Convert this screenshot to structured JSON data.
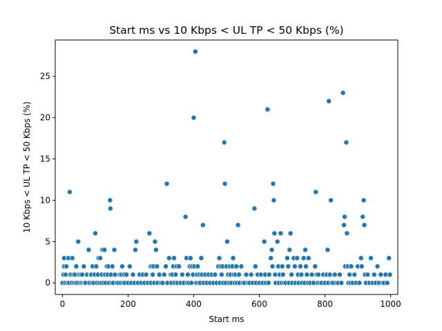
{
  "chart_data": {
    "type": "scatter",
    "title": "Start ms vs 10 Kbps < UL TP < 50 Kbps (%)",
    "xlabel": "Start ms",
    "ylabel": "10 Kbps < UL TP < 50 Kbps (%)",
    "xlim": [
      -22,
      1022
    ],
    "ylim": [
      -1.4,
      29.4
    ],
    "xticks": [
      0,
      200,
      400,
      600,
      800,
      1000
    ],
    "yticks": [
      0,
      5,
      10,
      15,
      20,
      25
    ],
    "color": "#1f77b4",
    "grid": false,
    "points": [
      [
        0,
        0
      ],
      [
        3,
        1
      ],
      [
        5,
        2
      ],
      [
        5,
        3
      ],
      [
        8,
        0
      ],
      [
        10,
        1
      ],
      [
        12,
        2
      ],
      [
        15,
        0
      ],
      [
        18,
        3
      ],
      [
        20,
        0
      ],
      [
        22,
        11
      ],
      [
        25,
        1
      ],
      [
        28,
        0
      ],
      [
        30,
        3
      ],
      [
        33,
        1
      ],
      [
        35,
        0
      ],
      [
        38,
        1
      ],
      [
        40,
        0
      ],
      [
        42,
        2
      ],
      [
        45,
        0
      ],
      [
        48,
        5
      ],
      [
        50,
        1
      ],
      [
        53,
        0
      ],
      [
        55,
        1
      ],
      [
        58,
        0
      ],
      [
        60,
        1
      ],
      [
        63,
        0
      ],
      [
        65,
        2
      ],
      [
        68,
        0
      ],
      [
        70,
        0
      ],
      [
        75,
        1
      ],
      [
        80,
        4
      ],
      [
        82,
        0
      ],
      [
        85,
        1
      ],
      [
        88,
        1
      ],
      [
        90,
        0
      ],
      [
        92,
        2
      ],
      [
        95,
        0
      ],
      [
        98,
        1
      ],
      [
        100,
        6
      ],
      [
        103,
        2
      ],
      [
        105,
        0
      ],
      [
        108,
        1
      ],
      [
        110,
        3
      ],
      [
        112,
        0
      ],
      [
        115,
        3
      ],
      [
        118,
        0
      ],
      [
        120,
        1
      ],
      [
        122,
        4
      ],
      [
        125,
        0
      ],
      [
        128,
        4
      ],
      [
        130,
        1
      ],
      [
        132,
        0
      ],
      [
        135,
        2
      ],
      [
        138,
        1
      ],
      [
        140,
        2
      ],
      [
        142,
        0
      ],
      [
        145,
        10
      ],
      [
        146,
        9
      ],
      [
        148,
        1
      ],
      [
        150,
        0
      ],
      [
        152,
        2
      ],
      [
        155,
        0
      ],
      [
        158,
        4
      ],
      [
        160,
        1
      ],
      [
        165,
        0
      ],
      [
        170,
        0
      ],
      [
        175,
        1
      ],
      [
        178,
        0
      ],
      [
        180,
        1
      ],
      [
        182,
        2
      ],
      [
        185,
        0
      ],
      [
        188,
        1
      ],
      [
        190,
        0
      ],
      [
        195,
        1
      ],
      [
        200,
        0
      ],
      [
        205,
        2
      ],
      [
        210,
        0
      ],
      [
        215,
        1
      ],
      [
        220,
        0
      ],
      [
        222,
        4
      ],
      [
        225,
        5
      ],
      [
        230,
        0
      ],
      [
        235,
        1
      ],
      [
        240,
        0
      ],
      [
        245,
        1
      ],
      [
        250,
        0
      ],
      [
        255,
        1
      ],
      [
        260,
        0
      ],
      [
        265,
        6
      ],
      [
        268,
        2
      ],
      [
        270,
        0
      ],
      [
        272,
        2
      ],
      [
        275,
        1
      ],
      [
        278,
        2
      ],
      [
        280,
        0
      ],
      [
        282,
        5
      ],
      [
        285,
        4
      ],
      [
        288,
        2
      ],
      [
        290,
        0
      ],
      [
        295,
        1
      ],
      [
        300,
        0
      ],
      [
        305,
        0
      ],
      [
        310,
        1
      ],
      [
        315,
        2
      ],
      [
        318,
        12
      ],
      [
        320,
        0
      ],
      [
        325,
        3
      ],
      [
        330,
        1
      ],
      [
        332,
        0
      ],
      [
        335,
        1
      ],
      [
        338,
        2
      ],
      [
        340,
        3
      ],
      [
        342,
        0
      ],
      [
        345,
        1
      ],
      [
        348,
        2
      ],
      [
        350,
        0
      ],
      [
        355,
        2
      ],
      [
        360,
        0
      ],
      [
        365,
        1
      ],
      [
        370,
        0
      ],
      [
        375,
        8
      ],
      [
        378,
        3
      ],
      [
        380,
        0
      ],
      [
        382,
        1
      ],
      [
        385,
        0
      ],
      [
        388,
        2
      ],
      [
        390,
        3
      ],
      [
        393,
        0
      ],
      [
        395,
        2
      ],
      [
        398,
        1
      ],
      [
        400,
        20
      ],
      [
        402,
        2
      ],
      [
        405,
        28
      ],
      [
        408,
        0
      ],
      [
        410,
        1
      ],
      [
        412,
        2
      ],
      [
        415,
        0
      ],
      [
        418,
        1
      ],
      [
        420,
        0
      ],
      [
        423,
        3
      ],
      [
        425,
        1
      ],
      [
        428,
        7
      ],
      [
        430,
        0
      ],
      [
        435,
        1
      ],
      [
        440,
        0
      ],
      [
        445,
        1
      ],
      [
        450,
        0
      ],
      [
        455,
        1
      ],
      [
        460,
        0
      ],
      [
        465,
        1
      ],
      [
        470,
        0
      ],
      [
        475,
        2
      ],
      [
        478,
        3
      ],
      [
        480,
        0
      ],
      [
        482,
        2
      ],
      [
        485,
        1
      ],
      [
        488,
        2
      ],
      [
        490,
        0
      ],
      [
        493,
        17
      ],
      [
        495,
        12
      ],
      [
        498,
        0
      ],
      [
        500,
        2
      ],
      [
        502,
        5
      ],
      [
        505,
        1
      ],
      [
        508,
        0
      ],
      [
        510,
        2
      ],
      [
        512,
        1
      ],
      [
        515,
        0
      ],
      [
        518,
        2
      ],
      [
        520,
        3
      ],
      [
        522,
        1
      ],
      [
        525,
        0
      ],
      [
        528,
        1
      ],
      [
        530,
        2
      ],
      [
        532,
        0
      ],
      [
        535,
        7
      ],
      [
        538,
        1
      ],
      [
        540,
        0
      ],
      [
        545,
        2
      ],
      [
        550,
        0
      ],
      [
        555,
        0
      ],
      [
        560,
        1
      ],
      [
        565,
        0
      ],
      [
        570,
        0
      ],
      [
        575,
        1
      ],
      [
        580,
        0
      ],
      [
        585,
        9
      ],
      [
        588,
        2
      ],
      [
        590,
        0
      ],
      [
        595,
        1
      ],
      [
        600,
        0
      ],
      [
        605,
        1
      ],
      [
        610,
        0
      ],
      [
        615,
        5
      ],
      [
        618,
        1
      ],
      [
        620,
        0
      ],
      [
        625,
        21
      ],
      [
        628,
        0
      ],
      [
        630,
        1
      ],
      [
        635,
        3
      ],
      [
        638,
        4
      ],
      [
        640,
        2
      ],
      [
        642,
        12
      ],
      [
        644,
        10
      ],
      [
        646,
        6
      ],
      [
        648,
        1
      ],
      [
        650,
        0
      ],
      [
        655,
        5
      ],
      [
        658,
        2
      ],
      [
        660,
        0
      ],
      [
        662,
        1
      ],
      [
        665,
        6
      ],
      [
        668,
        0
      ],
      [
        670,
        2
      ],
      [
        672,
        1
      ],
      [
        675,
        0
      ],
      [
        680,
        0
      ],
      [
        685,
        3
      ],
      [
        688,
        2
      ],
      [
        690,
        0
      ],
      [
        692,
        4
      ],
      [
        695,
        6
      ],
      [
        698,
        1
      ],
      [
        700,
        0
      ],
      [
        705,
        3
      ],
      [
        708,
        2
      ],
      [
        710,
        0
      ],
      [
        715,
        3
      ],
      [
        718,
        1
      ],
      [
        720,
        0
      ],
      [
        725,
        2
      ],
      [
        728,
        1
      ],
      [
        730,
        0
      ],
      [
        735,
        3
      ],
      [
        738,
        0
      ],
      [
        740,
        4
      ],
      [
        742,
        2
      ],
      [
        745,
        1
      ],
      [
        748,
        0
      ],
      [
        750,
        3
      ],
      [
        755,
        0
      ],
      [
        760,
        1
      ],
      [
        765,
        0
      ],
      [
        770,
        2
      ],
      [
        772,
        11
      ],
      [
        775,
        1
      ],
      [
        778,
        0
      ],
      [
        780,
        1
      ],
      [
        785,
        0
      ],
      [
        790,
        0
      ],
      [
        795,
        1
      ],
      [
        800,
        0
      ],
      [
        805,
        1
      ],
      [
        808,
        4
      ],
      [
        810,
        0
      ],
      [
        812,
        22
      ],
      [
        815,
        1
      ],
      [
        818,
        10
      ],
      [
        820,
        0
      ],
      [
        825,
        0
      ],
      [
        830,
        1
      ],
      [
        835,
        0
      ],
      [
        840,
        0
      ],
      [
        845,
        1
      ],
      [
        850,
        0
      ],
      [
        855,
        23
      ],
      [
        858,
        7
      ],
      [
        860,
        8
      ],
      [
        862,
        2
      ],
      [
        865,
        17
      ],
      [
        867,
        6
      ],
      [
        870,
        2
      ],
      [
        872,
        0
      ],
      [
        875,
        1
      ],
      [
        878,
        0
      ],
      [
        880,
        2
      ],
      [
        885,
        0
      ],
      [
        890,
        1
      ],
      [
        895,
        0
      ],
      [
        900,
        2
      ],
      [
        905,
        0
      ],
      [
        910,
        3
      ],
      [
        912,
        2
      ],
      [
        915,
        8
      ],
      [
        918,
        10
      ],
      [
        920,
        7
      ],
      [
        922,
        1
      ],
      [
        925,
        0
      ],
      [
        930,
        1
      ],
      [
        935,
        0
      ],
      [
        940,
        3
      ],
      [
        945,
        0
      ],
      [
        950,
        1
      ],
      [
        955,
        0
      ],
      [
        960,
        2
      ],
      [
        965,
        0
      ],
      [
        970,
        1
      ],
      [
        975,
        0
      ],
      [
        980,
        0
      ],
      [
        985,
        1
      ],
      [
        990,
        0
      ],
      [
        995,
        3
      ],
      [
        998,
        1
      ]
    ]
  }
}
